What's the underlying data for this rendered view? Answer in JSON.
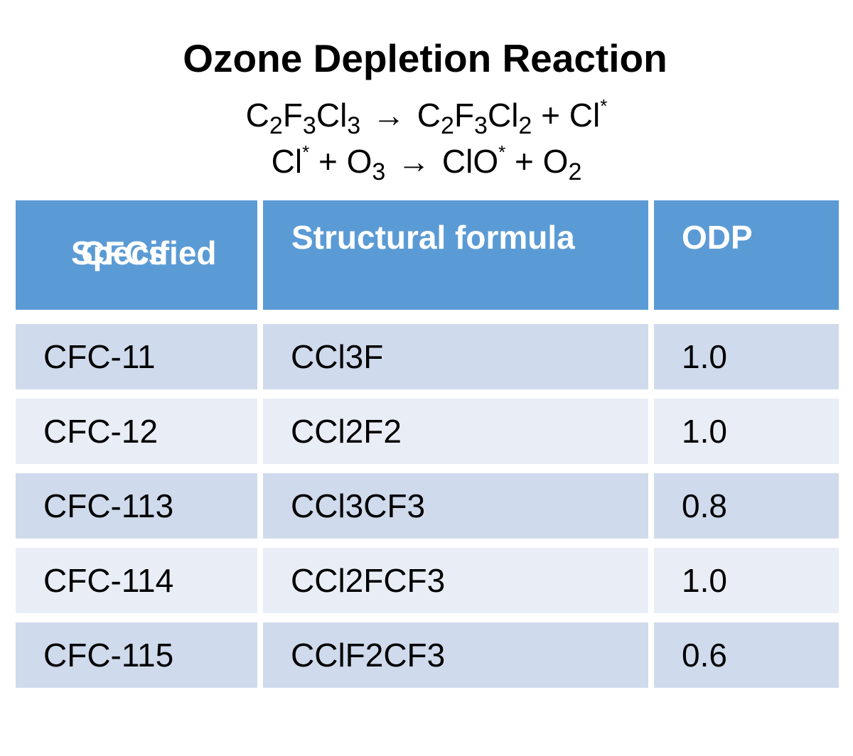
{
  "title": "Ozone Depletion Reaction",
  "reactions": [
    {
      "reactant_parts": [
        "C",
        "2",
        "F",
        "3",
        "Cl",
        "3"
      ],
      "arrow": "→",
      "product_parts": [
        "C",
        "2",
        "F",
        "3",
        "Cl",
        "2",
        " + Cl",
        "*"
      ]
    },
    {
      "reactant_parts": [
        "Cl",
        "*",
        " + O",
        "3"
      ],
      "arrow": "→",
      "product_parts": [
        "ClO",
        "*",
        " + O",
        "2"
      ]
    }
  ],
  "table": {
    "headers": {
      "specified_line1": "Specified",
      "specified_line2": "CFCs",
      "formula": "Structural formula",
      "odp": "ODP"
    },
    "rows": [
      {
        "name": "CFC-11",
        "formula": "CCl3F",
        "odp": "1.0"
      },
      {
        "name": "CFC-12",
        "formula": "CCl2F2",
        "odp": "1.0"
      },
      {
        "name": "CFC-113",
        "formula": "CCl3CF3",
        "odp": "0.8"
      },
      {
        "name": "CFC-114",
        "formula": "CCl2FCF3",
        "odp": "1.0"
      },
      {
        "name": "CFC-115",
        "formula": "CClF2CF3",
        "odp": "0.6"
      }
    ]
  },
  "colors": {
    "header_bg": "#5b9bd5",
    "row_dark": "#cfdaec",
    "row_light": "#e8edf6"
  }
}
